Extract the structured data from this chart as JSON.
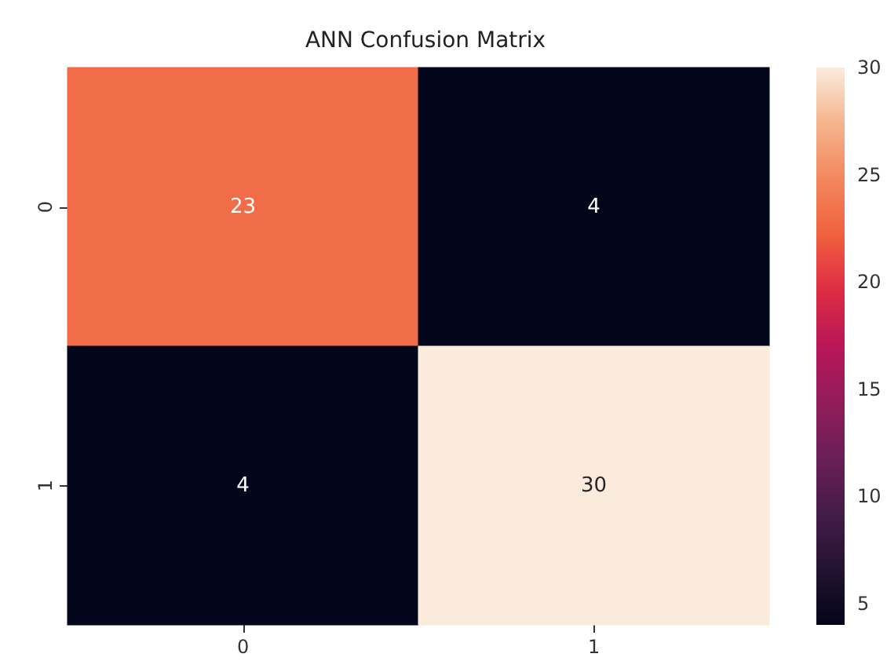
{
  "chart_data": {
    "type": "heatmap",
    "title": "ANN Confusion Matrix",
    "categories": [
      "0",
      "1"
    ],
    "y_categories": [
      "0",
      "1"
    ],
    "cells": [
      [
        23,
        4
      ],
      [
        4,
        30
      ]
    ],
    "data_labels": true,
    "clim": [
      4,
      30
    ],
    "cticks": [
      5,
      10,
      15,
      20,
      25,
      30
    ]
  }
}
